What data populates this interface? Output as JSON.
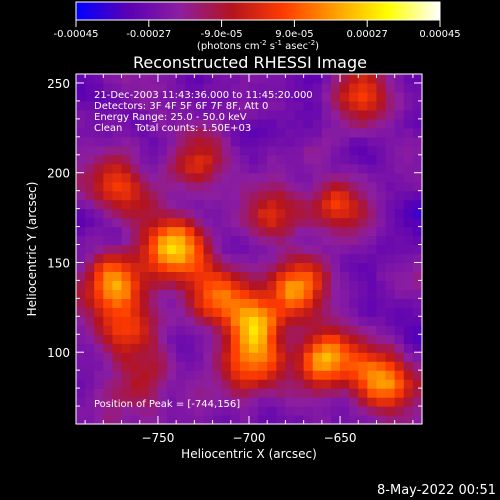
{
  "chart_data": {
    "type": "heatmap",
    "title": "Reconstructed RHESSI Image",
    "xlabel": "Heliocentric X (arcsec)",
    "ylabel": "Heliocentric Y (arcsec)",
    "xlim": [
      -795,
      -605
    ],
    "ylim": [
      60,
      255
    ],
    "x_ticks": [
      -750,
      -700,
      -650
    ],
    "y_ticks": [
      100,
      150,
      200,
      250
    ],
    "info_lines": [
      "21-Dec-2003 11:43:36.000 to 11:45:20.000",
      "Detectors: 3F 4F 5F 6F 7F 8F, Att 0",
      "Energy Range: 25.0 - 50.0 keV",
      "Clean    Total counts: 1.50E+03"
    ],
    "peak_label": "Position of Peak = [-744,156]",
    "peak": [
      -744,
      156
    ],
    "colorbar": {
      "range": [
        -0.00045,
        0.00045
      ],
      "ticks": [
        "-0.00045",
        "-0.00027",
        "-9.0e-05",
        "9.0e-05",
        "0.00027",
        "0.00045"
      ],
      "unit_parts": [
        "(photons cm",
        "-2",
        " s",
        "-1",
        " asec",
        "-2",
        ")"
      ],
      "colors": [
        "#0000ff",
        "#5a00b4",
        "#8c1ea0",
        "#b4141e",
        "#ff3c00",
        "#ffa000",
        "#ffff00",
        "#ffffff"
      ]
    },
    "sources": [
      {
        "x": -744,
        "y": 156,
        "w": 1.0
      },
      {
        "x": -660,
        "y": 95,
        "w": 0.9
      },
      {
        "x": -630,
        "y": 82,
        "w": 0.85
      },
      {
        "x": -700,
        "y": 115,
        "w": 0.8
      },
      {
        "x": -675,
        "y": 135,
        "w": 0.75
      },
      {
        "x": -775,
        "y": 135,
        "w": 0.8
      },
      {
        "x": -700,
        "y": 90,
        "w": 0.7
      },
      {
        "x": -775,
        "y": 190,
        "w": 0.6
      },
      {
        "x": -770,
        "y": 110,
        "w": 0.55
      },
      {
        "x": -640,
        "y": 240,
        "w": 0.5
      },
      {
        "x": -655,
        "y": 180,
        "w": 0.5
      },
      {
        "x": -730,
        "y": 205,
        "w": 0.45
      },
      {
        "x": -690,
        "y": 175,
        "w": 0.45
      },
      {
        "x": -720,
        "y": 130,
        "w": 0.6
      },
      {
        "x": -760,
        "y": 80,
        "w": 0.4
      }
    ]
  },
  "timestamp": "8-May-2022 00:51"
}
